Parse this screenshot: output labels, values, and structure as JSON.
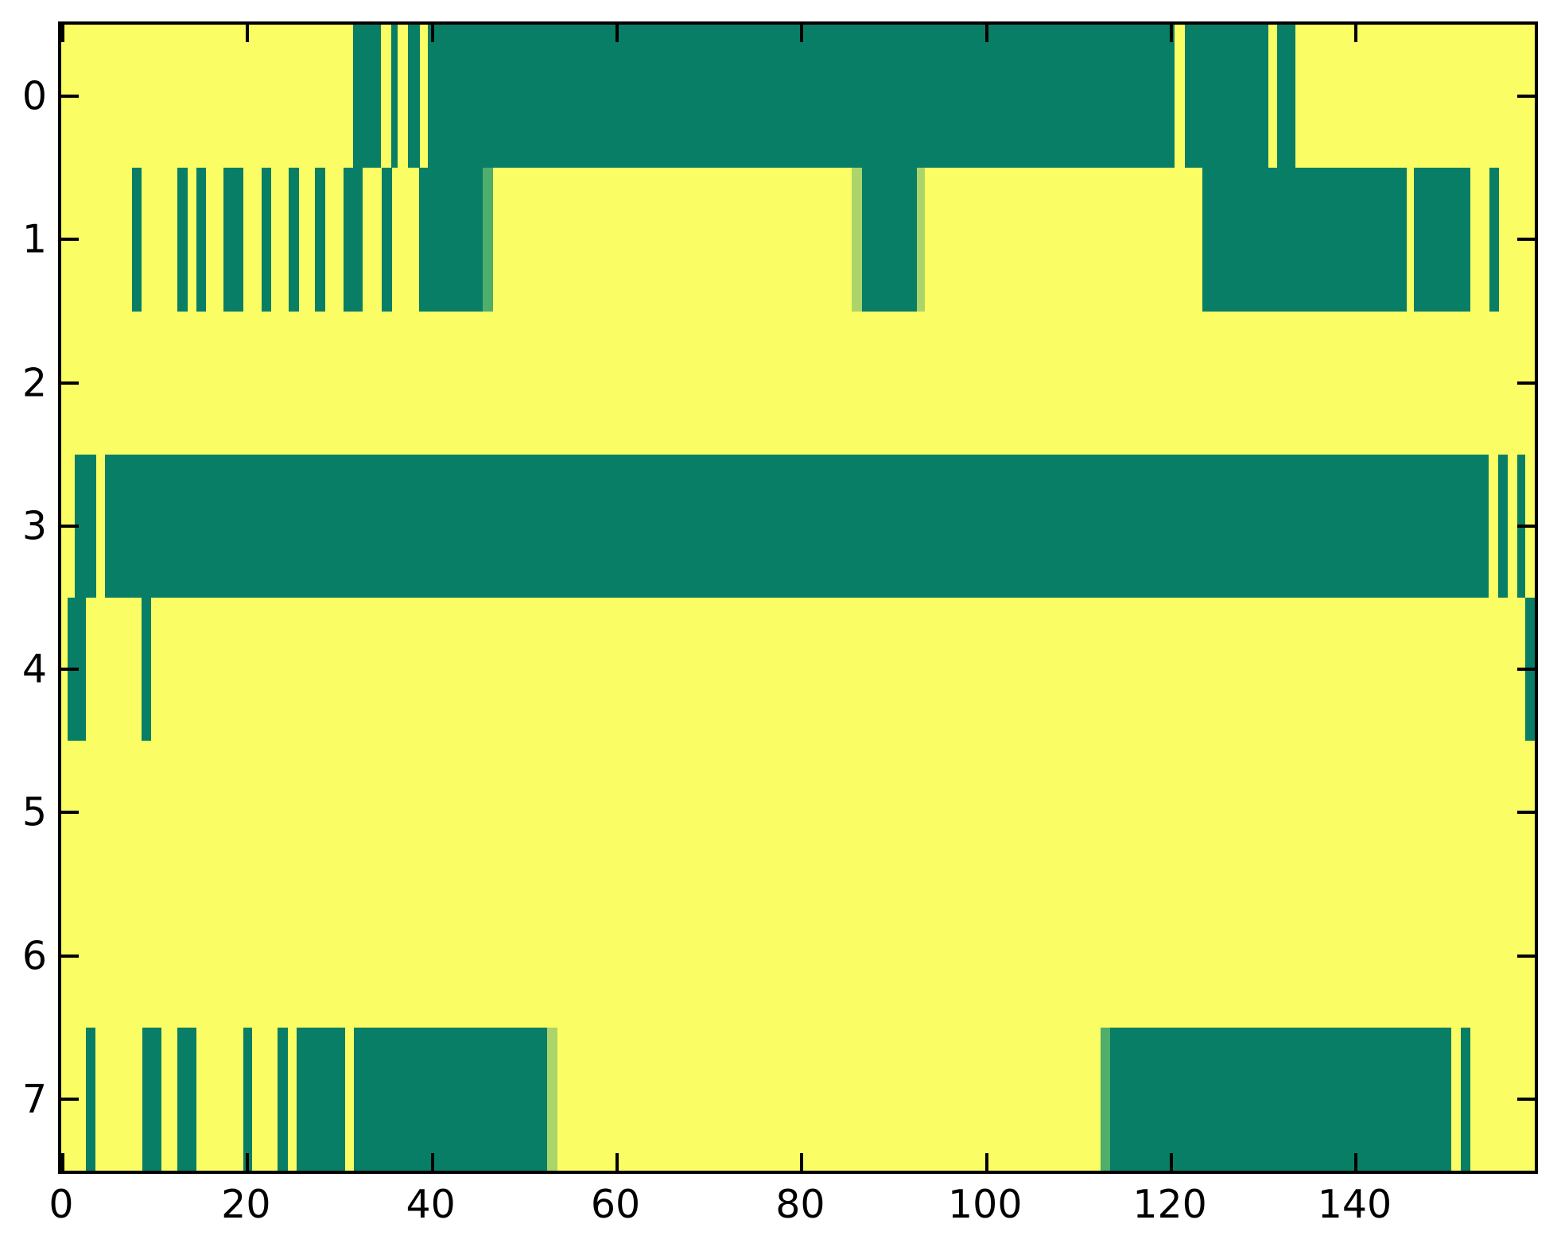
{
  "chart_data": {
    "type": "heatmap",
    "title": "",
    "xlabel": "",
    "ylabel": "",
    "x_domain": [
      0,
      159.5
    ],
    "x_ticks": [
      {
        "value": 0,
        "label": "0"
      },
      {
        "value": 20,
        "label": "20"
      },
      {
        "value": 40,
        "label": "40"
      },
      {
        "value": 60,
        "label": "60"
      },
      {
        "value": 80,
        "label": "80"
      },
      {
        "value": 100,
        "label": "100"
      },
      {
        "value": 120,
        "label": "120"
      },
      {
        "value": 140,
        "label": "140"
      }
    ],
    "colors": {
      "off": "#fafd63",
      "on": "#087e66",
      "mid": "#4fae6c",
      "light": "#abd56a",
      "axis": "#000000",
      "background": "#ffffff"
    },
    "legend": null,
    "grid": false,
    "rows": [
      {
        "label": "0",
        "segments": [
          [
            31.6,
            34.6,
            "on"
          ],
          [
            35.7,
            36.4,
            "on"
          ],
          [
            37.5,
            38.8,
            "on"
          ],
          [
            39.7,
            120.5,
            "on"
          ],
          [
            121.6,
            130.7,
            "on"
          ],
          [
            131.6,
            133.6,
            "on"
          ]
        ]
      },
      {
        "label": "1",
        "segments": [
          [
            7.65,
            8.7,
            "on"
          ],
          [
            12.6,
            13.7,
            "on"
          ],
          [
            14.6,
            15.7,
            "on"
          ],
          [
            17.6,
            19.7,
            "on"
          ],
          [
            21.7,
            22.7,
            "on"
          ],
          [
            24.65,
            25.7,
            "on"
          ],
          [
            27.5,
            28.6,
            "on"
          ],
          [
            30.6,
            32.6,
            "on"
          ],
          [
            34.7,
            35.8,
            "on"
          ],
          [
            38.7,
            45.6,
            "on"
          ],
          [
            45.6,
            46.7,
            "mid"
          ],
          [
            85.6,
            86.7,
            "light"
          ],
          [
            86.7,
            92.6,
            "on"
          ],
          [
            92.6,
            93.5,
            "light"
          ],
          [
            123.5,
            145.6,
            "on"
          ],
          [
            146.4,
            152.5,
            "on"
          ],
          [
            154.6,
            155.6,
            "on"
          ]
        ]
      },
      {
        "label": "2",
        "segments": []
      },
      {
        "label": "3",
        "segments": [
          [
            1.5,
            3.75,
            "on"
          ],
          [
            4.7,
            154.5,
            "on"
          ],
          [
            155.5,
            156.6,
            "on"
          ],
          [
            157.6,
            158.5,
            "on"
          ]
        ]
      },
      {
        "label": "4",
        "segments": [
          [
            0.7,
            2.7,
            "on"
          ],
          [
            8.7,
            9.7,
            "on"
          ],
          [
            158.5,
            159.5,
            "on"
          ]
        ]
      },
      {
        "label": "5",
        "segments": []
      },
      {
        "label": "6",
        "segments": []
      },
      {
        "label": "7",
        "segments": [
          [
            2.7,
            3.7,
            "on"
          ],
          [
            8.8,
            10.85,
            "on"
          ],
          [
            12.6,
            14.6,
            "on"
          ],
          [
            19.7,
            20.7,
            "on"
          ],
          [
            23.45,
            24.5,
            "on"
          ],
          [
            25.45,
            30.7,
            "on"
          ],
          [
            31.7,
            52.6,
            "on"
          ],
          [
            52.6,
            53.7,
            "light"
          ],
          [
            112.5,
            113.5,
            "mid"
          ],
          [
            113.5,
            150.5,
            "on"
          ],
          [
            151.5,
            152.5,
            "on"
          ]
        ]
      }
    ]
  }
}
